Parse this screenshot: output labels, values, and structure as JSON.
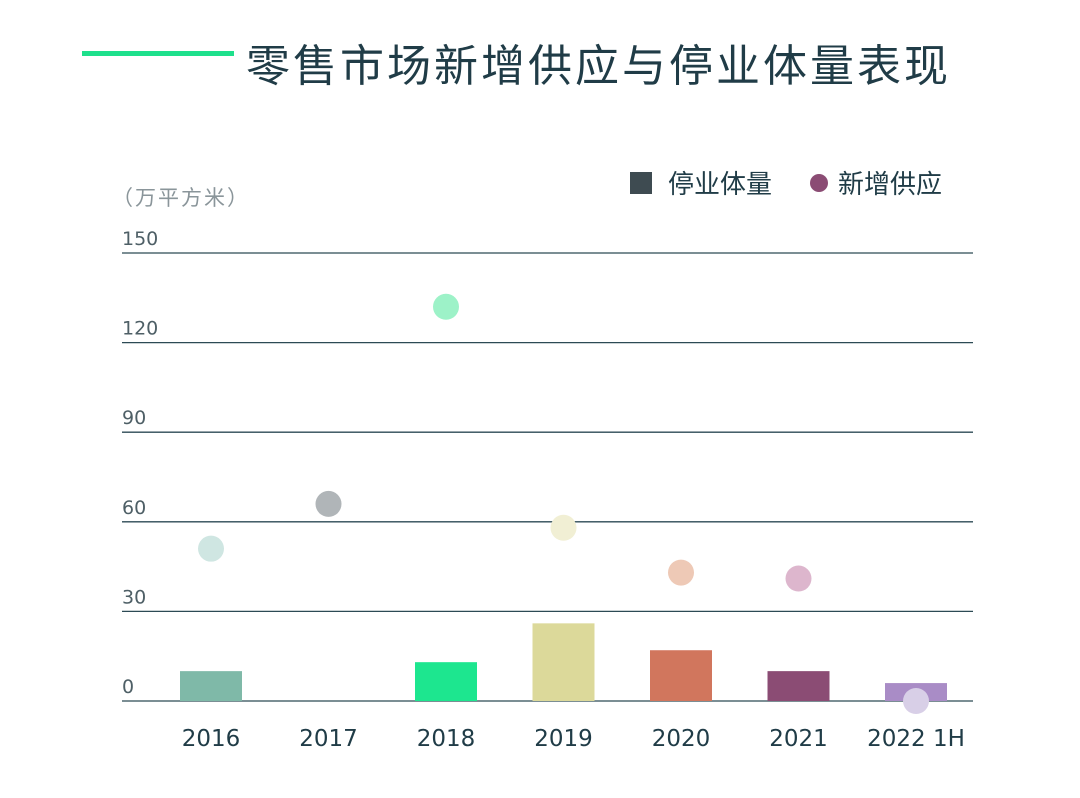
{
  "title": "零售市场新增供应与停业体量表现",
  "unit": "（万平方米）",
  "legend": {
    "bar_label": "停业体量",
    "dot_label": "新增供应"
  },
  "colors": {
    "title_line": "#1ee08c",
    "legend_bar": "#3e4b51",
    "legend_dot": "#8b4c74"
  },
  "chart_data": {
    "type": "bar",
    "categories": [
      "2016",
      "2017",
      "2018",
      "2019",
      "2020",
      "2021",
      "2022 1H"
    ],
    "series": [
      {
        "name": "停业体量",
        "values": [
          10,
          0,
          13,
          26,
          17,
          10,
          6
        ],
        "colors": [
          "#7fb9a8",
          "#a9adb0",
          "#1de68f",
          "#dcd99a",
          "#d1765d",
          "#8b4c74",
          "#a98cc6"
        ]
      },
      {
        "name": "新增供应",
        "values": [
          51,
          66,
          132,
          58,
          43,
          41,
          0
        ],
        "colors": [
          "#cfe6e2",
          "#b0b5b8",
          "#9df2c8",
          "#f1efd4",
          "#eec9b6",
          "#ddb6cd",
          "#d8cfe7"
        ]
      }
    ],
    "yticks": [
      0,
      30,
      60,
      90,
      120,
      150
    ],
    "ylim": [
      0,
      150
    ],
    "grid": true,
    "legend_position": "top-right"
  }
}
